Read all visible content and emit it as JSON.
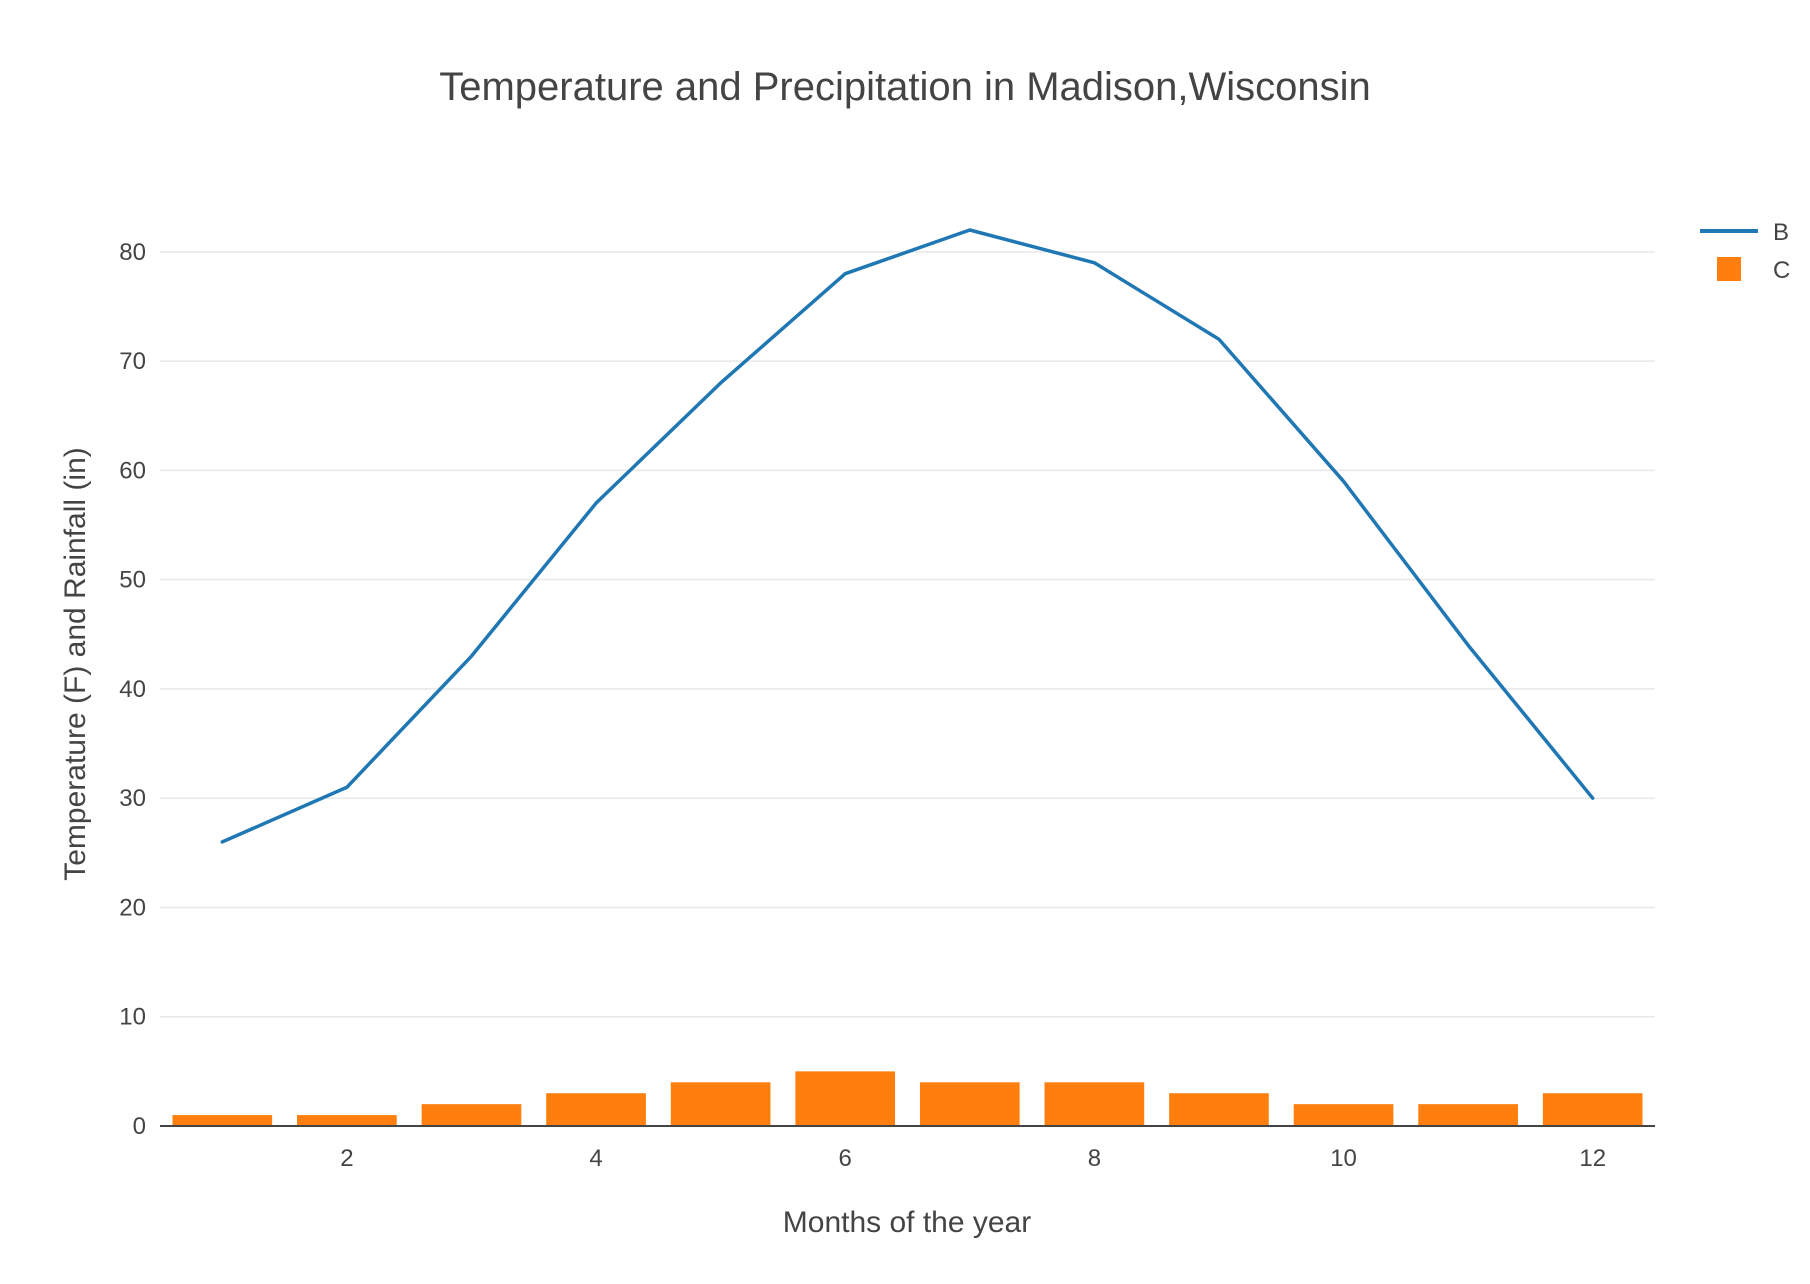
{
  "chart_data": {
    "title": "Temperature and Precipitation in Madison,Wisconsin",
    "xlabel": "Months of the year",
    "ylabel": "Temperature (F) and Rainfall (in)",
    "x_range": [
      0.5,
      12.5
    ],
    "y_range": [
      0,
      82
    ],
    "x_ticks": [
      2,
      4,
      6,
      8,
      10,
      12
    ],
    "y_ticks": [
      0,
      10,
      20,
      30,
      40,
      50,
      60,
      70,
      80
    ],
    "grid": true,
    "legend_position": "top-right",
    "series": [
      {
        "name": "B",
        "type": "line",
        "color": "#1f77b4",
        "x": [
          1,
          2,
          3,
          4,
          5,
          6,
          7,
          8,
          9,
          10,
          11,
          12
        ],
        "values": [
          26,
          31,
          43,
          57,
          68,
          78,
          82,
          79,
          72,
          59,
          44,
          30
        ]
      },
      {
        "name": "C",
        "type": "bar",
        "color": "#ff7f0e",
        "x": [
          1,
          2,
          3,
          4,
          5,
          6,
          7,
          8,
          9,
          10,
          11,
          12
        ],
        "values": [
          1,
          1,
          2,
          3,
          4,
          5,
          4,
          4,
          3,
          2,
          2,
          3
        ]
      }
    ]
  }
}
